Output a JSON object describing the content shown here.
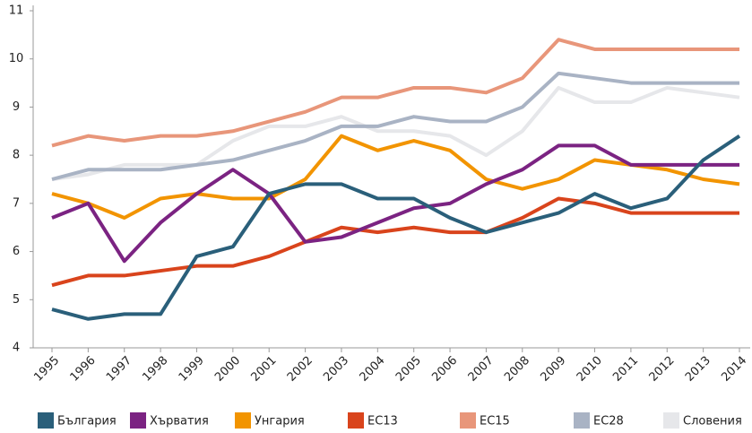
{
  "chart_data": {
    "type": "line",
    "categories": [
      "1995",
      "1996",
      "1997",
      "1998",
      "1999",
      "2000",
      "2001",
      "2002",
      "2003",
      "2004",
      "2005",
      "2006",
      "2007",
      "2008",
      "2009",
      "2010",
      "2011",
      "2012",
      "2013",
      "2014"
    ],
    "ylim": [
      4,
      11
    ],
    "yticks": [
      4,
      5,
      6,
      7,
      8,
      9,
      10,
      11
    ],
    "grid": false,
    "legend": "bottom",
    "series": [
      {
        "name": "България",
        "color": "#2a5f7a",
        "values": [
          4.8,
          4.6,
          4.7,
          4.7,
          5.9,
          6.1,
          7.2,
          7.4,
          7.4,
          7.1,
          7.1,
          6.7,
          6.4,
          6.6,
          6.8,
          7.2,
          6.9,
          7.1,
          7.9,
          8.4
        ]
      },
      {
        "name": "Хърватия",
        "color": "#7b2382",
        "values": [
          6.7,
          7.0,
          5.8,
          6.6,
          7.2,
          7.7,
          7.2,
          6.2,
          6.3,
          6.6,
          6.9,
          7.0,
          7.4,
          7.7,
          8.2,
          8.2,
          7.8,
          7.8,
          7.8,
          7.8
        ]
      },
      {
        "name": "Унгария",
        "color": "#f29400",
        "values": [
          7.2,
          7.0,
          6.7,
          7.1,
          7.2,
          7.1,
          7.1,
          7.5,
          8.4,
          8.1,
          8.3,
          8.1,
          7.5,
          7.3,
          7.5,
          7.9,
          7.8,
          7.7,
          7.5,
          7.4
        ]
      },
      {
        "name": "ЕС13",
        "color": "#d9441c",
        "values": [
          5.3,
          5.5,
          5.5,
          5.6,
          5.7,
          5.7,
          5.9,
          6.2,
          6.5,
          6.4,
          6.5,
          6.4,
          6.4,
          6.7,
          7.1,
          7.0,
          6.8,
          6.8,
          6.8,
          6.8
        ]
      },
      {
        "name": "ЕС15",
        "color": "#e8967a",
        "values": [
          8.2,
          8.4,
          8.3,
          8.4,
          8.4,
          8.5,
          8.7,
          8.9,
          9.2,
          9.2,
          9.4,
          9.4,
          9.3,
          9.6,
          10.4,
          10.2,
          10.2,
          10.2,
          10.2,
          10.2
        ]
      },
      {
        "name": "ЕС28",
        "color": "#a9b3c4",
        "values": [
          7.5,
          7.7,
          7.7,
          7.7,
          7.8,
          7.9,
          8.1,
          8.3,
          8.6,
          8.6,
          8.8,
          8.7,
          8.7,
          9.0,
          9.7,
          9.6,
          9.5,
          9.5,
          9.5,
          9.5
        ]
      },
      {
        "name": "Словения",
        "color": "#e6e7ea",
        "values": [
          7.5,
          7.6,
          7.8,
          7.8,
          7.8,
          8.3,
          8.6,
          8.6,
          8.8,
          8.5,
          8.5,
          8.4,
          8.0,
          8.5,
          9.4,
          9.1,
          9.1,
          9.4,
          9.3,
          9.2
        ]
      }
    ]
  }
}
